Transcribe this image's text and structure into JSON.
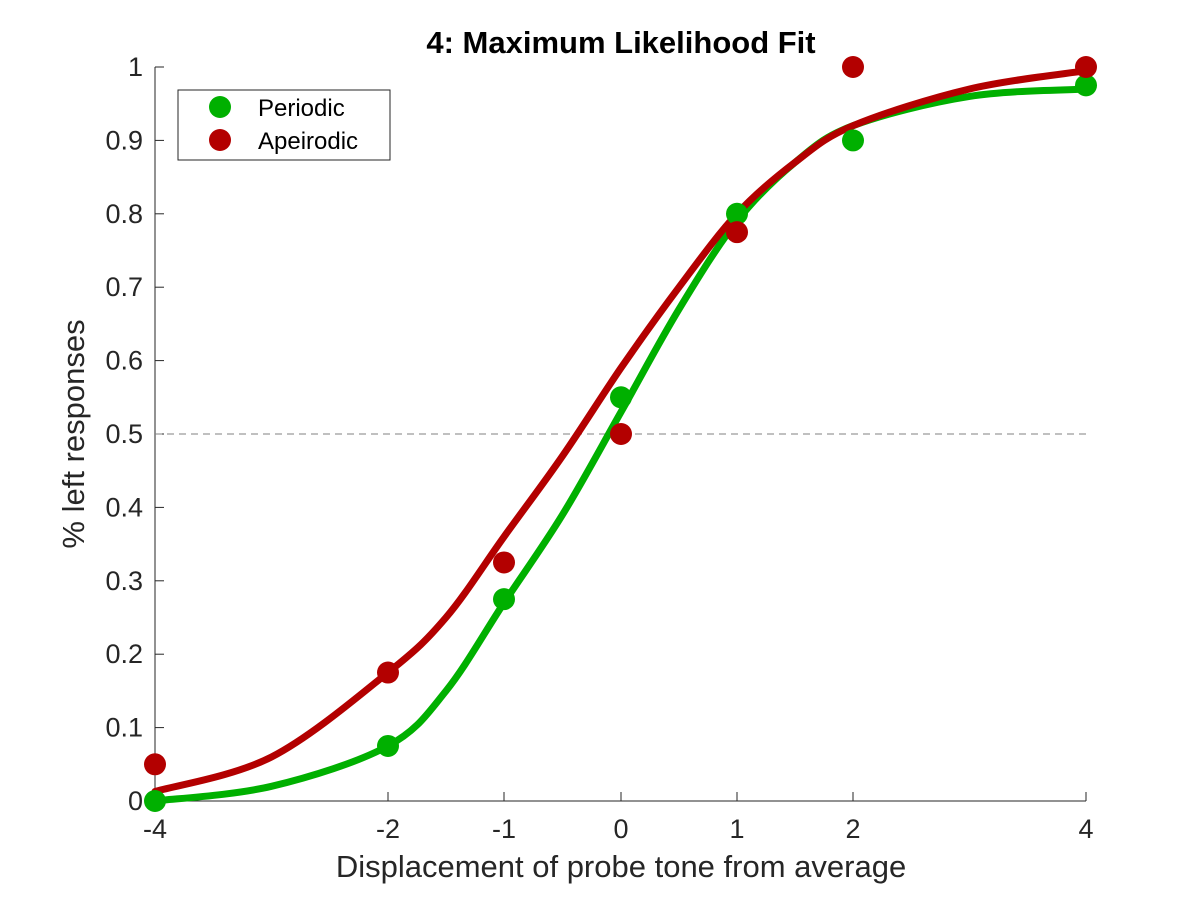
{
  "chart_data": {
    "type": "line",
    "title": "4: Maximum Likelihood Fit",
    "xlabel": "Displacement of probe tone from average",
    "ylabel": "% left responses",
    "x_ticks": [
      -4,
      -2,
      -1,
      0,
      1,
      2,
      4
    ],
    "x_tick_labels": [
      "-4",
      "-2",
      "-1",
      "0",
      "1",
      "2",
      "4"
    ],
    "x_axis_scale": "nonuniform (spacing as printed: -4, -2, -1, 0, 1, 2, 4)",
    "y_ticks": [
      0,
      0.1,
      0.2,
      0.3,
      0.4,
      0.5,
      0.6,
      0.7,
      0.8,
      0.9,
      1
    ],
    "y_tick_labels": [
      "0",
      "0.1",
      "0.2",
      "0.3",
      "0.4",
      "0.5",
      "0.6",
      "0.7",
      "0.8",
      "0.9",
      "1"
    ],
    "xlim": [
      -4,
      4
    ],
    "ylim": [
      0,
      1
    ],
    "reference_line": {
      "y": 0.5,
      "style": "dashed",
      "color": "#808080"
    },
    "legend": {
      "placement": "top-left"
    },
    "series": [
      {
        "name": "Periodic",
        "color": "#00b000",
        "points": {
          "x": [
            -4,
            -2,
            -1,
            0,
            1,
            2,
            4
          ],
          "y": [
            0.0,
            0.075,
            0.275,
            0.55,
            0.8,
            0.9,
            0.975
          ]
        },
        "fit": {
          "x": [
            -4,
            -3,
            -2,
            -1.5,
            -1,
            -0.5,
            0,
            0.5,
            1,
            1.5,
            2,
            3,
            4
          ],
          "y": [
            0.0,
            0.02,
            0.075,
            0.15,
            0.27,
            0.39,
            0.53,
            0.67,
            0.79,
            0.87,
            0.92,
            0.96,
            0.97
          ]
        }
      },
      {
        "name": "Apeirodic",
        "color": "#b30000",
        "points": {
          "x": [
            -4,
            -2,
            -1,
            0,
            1,
            2,
            4
          ],
          "y": [
            0.05,
            0.175,
            0.325,
            0.5,
            0.775,
            1.0,
            1.0
          ]
        },
        "fit": {
          "x": [
            -4,
            -3,
            -2,
            -1.5,
            -1,
            -0.5,
            0,
            0.5,
            1,
            1.5,
            2,
            3,
            4
          ],
          "y": [
            0.013,
            0.06,
            0.175,
            0.25,
            0.36,
            0.47,
            0.59,
            0.7,
            0.8,
            0.87,
            0.92,
            0.97,
            0.995
          ]
        }
      }
    ]
  }
}
